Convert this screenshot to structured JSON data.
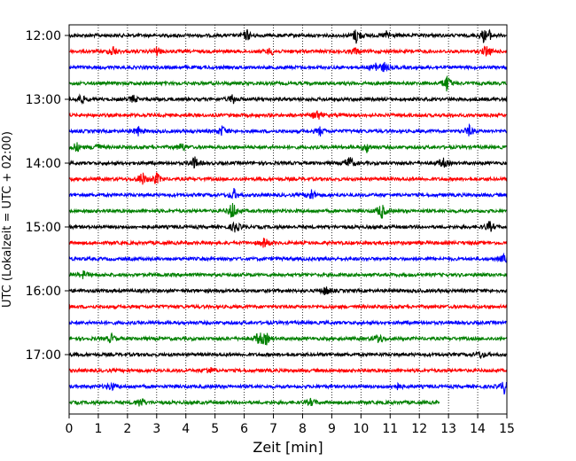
{
  "chart_data": {
    "type": "line",
    "xlabel": "Zeit  [min]",
    "ylabel": "UTC (Lokalzeit = UTC + 02:00)",
    "xlim": [
      0,
      15
    ],
    "xticks": [
      0,
      1,
      2,
      3,
      4,
      5,
      6,
      7,
      8,
      9,
      10,
      11,
      12,
      13,
      14,
      15
    ],
    "grid_x": true,
    "trace_interval_minutes": 15,
    "trace_colors": [
      "#000000",
      "#ff0000",
      "#0000ff",
      "#008000"
    ],
    "y_ticks": [
      {
        "label": "12:00",
        "trace": 0
      },
      {
        "label": "13:00",
        "trace": 4
      },
      {
        "label": "14:00",
        "trace": 8
      },
      {
        "label": "15:00",
        "trace": 12
      },
      {
        "label": "16:00",
        "trace": 16
      },
      {
        "label": "17:00",
        "trace": 20
      }
    ],
    "traces": [
      {
        "start": "12:00",
        "end_min": 15,
        "events": [
          {
            "t": 6.1,
            "a": 9
          },
          {
            "t": 9.85,
            "a": 14
          },
          {
            "t": 10.9,
            "a": 8
          },
          {
            "t": 14.2,
            "a": 9
          },
          {
            "t": 14.4,
            "a": 6
          }
        ]
      },
      {
        "start": "12:15",
        "end_min": 15,
        "events": [
          {
            "t": 1.5,
            "a": 9
          },
          {
            "t": 3.0,
            "a": 7
          },
          {
            "t": 6.9,
            "a": 6
          },
          {
            "t": 9.8,
            "a": 6
          },
          {
            "t": 14.3,
            "a": 10
          }
        ]
      },
      {
        "start": "12:30",
        "end_min": 15,
        "events": [
          {
            "t": 10.5,
            "a": 9
          },
          {
            "t": 10.8,
            "a": 7
          }
        ]
      },
      {
        "start": "12:45",
        "end_min": 15,
        "events": [
          {
            "t": 12.95,
            "a": 14
          }
        ]
      },
      {
        "start": "13:00",
        "end_min": 15,
        "events": [
          {
            "t": 0.4,
            "a": 8
          },
          {
            "t": 2.2,
            "a": 6
          },
          {
            "t": 5.6,
            "a": 8
          }
        ]
      },
      {
        "start": "13:15",
        "end_min": 15,
        "events": [
          {
            "t": 8.5,
            "a": 9
          }
        ]
      },
      {
        "start": "13:30",
        "end_min": 15,
        "events": [
          {
            "t": 2.35,
            "a": 8
          },
          {
            "t": 5.25,
            "a": 9
          },
          {
            "t": 8.6,
            "a": 7
          },
          {
            "t": 13.7,
            "a": 9
          }
        ]
      },
      {
        "start": "13:45",
        "end_min": 15,
        "events": [
          {
            "t": 0.25,
            "a": 8
          },
          {
            "t": 0.95,
            "a": 7
          },
          {
            "t": 3.85,
            "a": 7
          },
          {
            "t": 10.2,
            "a": 8
          }
        ]
      },
      {
        "start": "14:00",
        "end_min": 15,
        "events": [
          {
            "t": 4.3,
            "a": 10
          },
          {
            "t": 9.6,
            "a": 12
          },
          {
            "t": 12.8,
            "a": 9
          }
        ]
      },
      {
        "start": "14:15",
        "end_min": 15,
        "events": [
          {
            "t": 2.5,
            "a": 12
          },
          {
            "t": 3.0,
            "a": 10
          }
        ]
      },
      {
        "start": "14:30",
        "end_min": 15,
        "events": [
          {
            "t": 5.65,
            "a": 9
          },
          {
            "t": 8.3,
            "a": 10
          }
        ]
      },
      {
        "start": "14:45",
        "end_min": 15,
        "events": [
          {
            "t": 5.6,
            "a": 16
          },
          {
            "t": 10.7,
            "a": 14
          }
        ]
      },
      {
        "start": "15:00",
        "end_min": 15,
        "events": [
          {
            "t": 5.7,
            "a": 10
          },
          {
            "t": 14.4,
            "a": 9
          }
        ]
      },
      {
        "start": "15:15",
        "end_min": 15,
        "events": [
          {
            "t": 6.7,
            "a": 9
          }
        ]
      },
      {
        "start": "15:30",
        "end_min": 15,
        "events": [
          {
            "t": 14.9,
            "a": 7
          }
        ]
      },
      {
        "start": "15:45",
        "end_min": 15,
        "events": [
          {
            "t": 0.5,
            "a": 6
          }
        ]
      },
      {
        "start": "16:00",
        "end_min": 15,
        "events": [
          {
            "t": 8.8,
            "a": 8
          }
        ]
      },
      {
        "start": "16:15",
        "end_min": 15,
        "events": []
      },
      {
        "start": "16:30",
        "end_min": 15,
        "events": []
      },
      {
        "start": "16:45",
        "end_min": 15,
        "events": [
          {
            "t": 1.45,
            "a": 7
          },
          {
            "t": 6.5,
            "a": 11
          },
          {
            "t": 6.75,
            "a": 9
          },
          {
            "t": 10.6,
            "a": 9
          }
        ]
      },
      {
        "start": "17:00",
        "end_min": 15,
        "events": [
          {
            "t": 14.1,
            "a": 6
          }
        ]
      },
      {
        "start": "17:15",
        "end_min": 15,
        "events": [
          {
            "t": 4.8,
            "a": 6
          }
        ]
      },
      {
        "start": "17:30",
        "end_min": 15,
        "events": [
          {
            "t": 1.45,
            "a": 7
          },
          {
            "t": 11.2,
            "a": 7
          },
          {
            "t": 14.9,
            "a": 11
          }
        ]
      },
      {
        "start": "17:45",
        "end_min": 12.7,
        "events": [
          {
            "t": 2.45,
            "a": 9
          },
          {
            "t": 8.3,
            "a": 6
          }
        ]
      }
    ]
  }
}
